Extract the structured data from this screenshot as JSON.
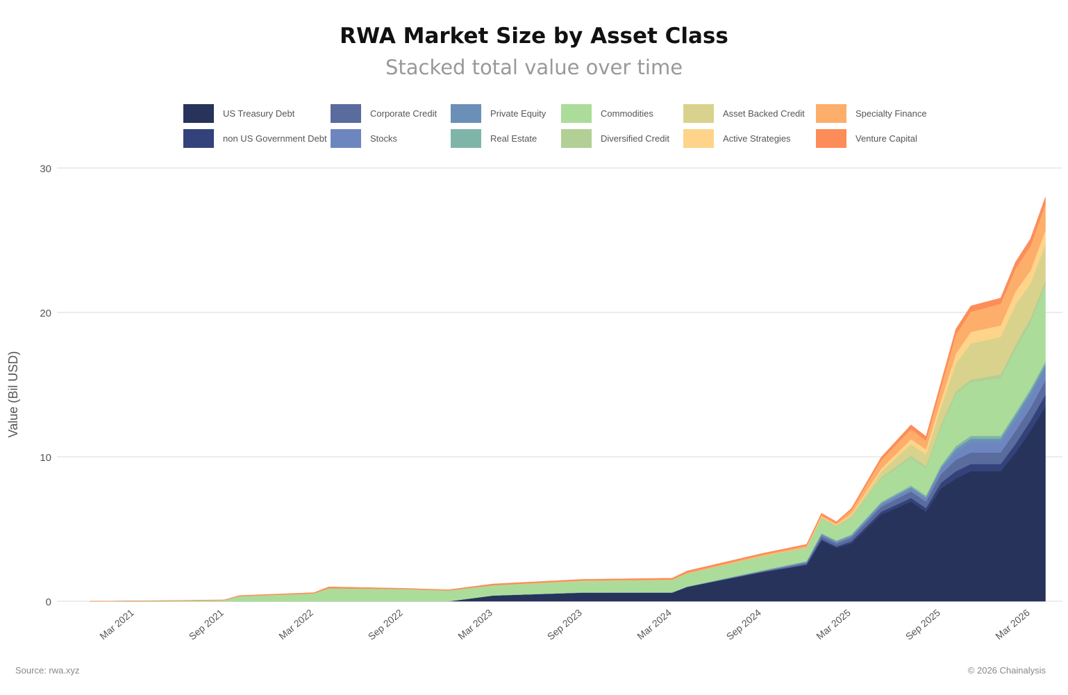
{
  "chart_data": {
    "type": "area",
    "stacked": true,
    "title": "RWA Market Size by Asset Class",
    "subtitle": "Stacked total value over time",
    "xlabel": "",
    "ylabel": "Value (Bil USD)",
    "ylim": [
      0,
      30
    ],
    "yticks": [
      0,
      10,
      20,
      30
    ],
    "xtick_labels": [
      "Mar 2021",
      "Sep 2021",
      "Mar 2022",
      "Sep 2022",
      "Mar 2023",
      "Sep 2023",
      "Mar 2024",
      "Sep 2024",
      "Mar 2025",
      "Sep 2025",
      "Mar 2026"
    ],
    "xtick_months": [
      "2021-03",
      "2021-09",
      "2022-03",
      "2022-09",
      "2023-03",
      "2023-09",
      "2024-03",
      "2024-09",
      "2025-03",
      "2025-09",
      "2026-03"
    ],
    "grid": true,
    "legend_position": "top",
    "x": [
      "2020-12",
      "2021-03",
      "2021-09",
      "2021-10",
      "2022-03",
      "2022-04",
      "2022-09",
      "2022-12",
      "2023-03",
      "2023-09",
      "2024-03",
      "2024-04",
      "2024-09",
      "2024-12",
      "2025-01",
      "2025-02",
      "2025-03",
      "2025-05",
      "2025-07",
      "2025-08",
      "2025-09",
      "2025-10",
      "2025-11",
      "2026-01",
      "2026-02",
      "2026-03",
      "2026-04"
    ],
    "series": [
      {
        "name": "US Treasury Debt",
        "color": "#27335a",
        "values": [
          0,
          0,
          0,
          0,
          0,
          0,
          0,
          0,
          0.4,
          0.6,
          0.6,
          1.0,
          2.0,
          2.5,
          4.2,
          3.7,
          4.0,
          6.0,
          6.9,
          6.2,
          7.8,
          8.5,
          9.0,
          9.0,
          10.3,
          11.8,
          13.5
        ]
      },
      {
        "name": "non US Government Debt",
        "color": "#33427a",
        "values": [
          0,
          0,
          0,
          0,
          0,
          0,
          0,
          0,
          0,
          0,
          0,
          0,
          0.02,
          0.05,
          0.1,
          0.1,
          0.15,
          0.2,
          0.25,
          0.25,
          0.4,
          0.5,
          0.5,
          0.5,
          0.6,
          0.7,
          0.8
        ]
      },
      {
        "name": "Corporate Credit",
        "color": "#5a6b9e",
        "values": [
          0,
          0,
          0,
          0,
          0,
          0,
          0,
          0,
          0,
          0,
          0,
          0,
          0.05,
          0.1,
          0.2,
          0.2,
          0.25,
          0.35,
          0.45,
          0.45,
          0.6,
          0.8,
          0.8,
          0.8,
          0.9,
          0.9,
          1.0
        ]
      },
      {
        "name": "Stocks",
        "color": "#6e86bf",
        "values": [
          0,
          0,
          0,
          0,
          0,
          0,
          0,
          0,
          0,
          0,
          0,
          0,
          0,
          0.05,
          0.1,
          0.1,
          0.1,
          0.15,
          0.2,
          0.2,
          0.3,
          0.5,
          0.7,
          0.7,
          0.75,
          0.8,
          0.8
        ]
      },
      {
        "name": "Private Equity",
        "color": "#6a90b8",
        "values": [
          0,
          0,
          0,
          0,
          0,
          0,
          0,
          0,
          0,
          0,
          0,
          0,
          0.02,
          0.03,
          0.05,
          0.05,
          0.05,
          0.08,
          0.1,
          0.1,
          0.15,
          0.25,
          0.25,
          0.25,
          0.3,
          0.3,
          0.3
        ]
      },
      {
        "name": "Real Estate",
        "color": "#7fb5a8",
        "values": [
          0,
          0,
          0,
          0,
          0,
          0,
          0,
          0,
          0.01,
          0.02,
          0.03,
          0.03,
          0.05,
          0.05,
          0.06,
          0.06,
          0.08,
          0.1,
          0.12,
          0.12,
          0.15,
          0.2,
          0.2,
          0.2,
          0.2,
          0.2,
          0.2
        ]
      },
      {
        "name": "Commodities",
        "color": "#acdc9a",
        "values": [
          0,
          0.02,
          0.08,
          0.35,
          0.55,
          0.9,
          0.85,
          0.75,
          0.7,
          0.8,
          0.85,
          0.9,
          0.95,
          0.9,
          1.0,
          0.95,
          1.1,
          1.6,
          1.9,
          1.9,
          2.6,
          3.6,
          3.7,
          4.0,
          4.4,
          4.6,
          5.3
        ]
      },
      {
        "name": "Diversified Credit",
        "color": "#b2cf95",
        "values": [
          0,
          0,
          0,
          0,
          0,
          0,
          0,
          0,
          0,
          0,
          0,
          0,
          0.02,
          0.03,
          0.05,
          0.05,
          0.08,
          0.1,
          0.15,
          0.15,
          0.2,
          0.2,
          0.2,
          0.25,
          0.3,
          0.3,
          0.3
        ]
      },
      {
        "name": "Asset Backed Credit",
        "color": "#d8d28c",
        "values": [
          0,
          0,
          0,
          0,
          0,
          0,
          0,
          0,
          0,
          0,
          0,
          0,
          0,
          0,
          0.05,
          0.05,
          0.15,
          0.4,
          0.8,
          0.8,
          1.2,
          1.9,
          2.5,
          2.6,
          2.8,
          2.4,
          2.5
        ]
      },
      {
        "name": "Active Strategies",
        "color": "#fdd48a",
        "values": [
          0,
          0,
          0,
          0,
          0,
          0,
          0,
          0,
          0,
          0,
          0,
          0,
          0.02,
          0.03,
          0.05,
          0.05,
          0.1,
          0.2,
          0.35,
          0.35,
          0.5,
          0.7,
          0.8,
          0.8,
          0.9,
          0.9,
          1.0
        ]
      },
      {
        "name": "Specialty Finance",
        "color": "#fdae6b",
        "values": [
          0,
          0,
          0,
          0,
          0,
          0,
          0,
          0,
          0,
          0.02,
          0.03,
          0.05,
          0.08,
          0.1,
          0.12,
          0.1,
          0.25,
          0.6,
          0.7,
          0.6,
          0.9,
          1.3,
          1.4,
          1.5,
          1.6,
          1.7,
          1.8
        ]
      },
      {
        "name": "Venture Capital",
        "color": "#fc8d59",
        "values": [
          0,
          0.01,
          0.02,
          0.05,
          0.05,
          0.1,
          0.05,
          0.05,
          0.09,
          0.08,
          0.09,
          0.12,
          0.1,
          0.1,
          0.12,
          0.1,
          0.12,
          0.2,
          0.3,
          0.3,
          0.35,
          0.4,
          0.4,
          0.4,
          0.45,
          0.5,
          0.5
        ]
      }
    ],
    "legend_order": [
      "US Treasury Debt",
      "non US Government Debt",
      "Corporate Credit",
      "Stocks",
      "Private Equity",
      "Real Estate",
      "Commodities",
      "Diversified Credit",
      "Asset Backed Credit",
      "Active Strategies",
      "Specialty Finance",
      "Venture Capital"
    ]
  },
  "footer": {
    "source": "Source: rwa.xyz",
    "copyright": "© 2026 Chainalysis"
  }
}
